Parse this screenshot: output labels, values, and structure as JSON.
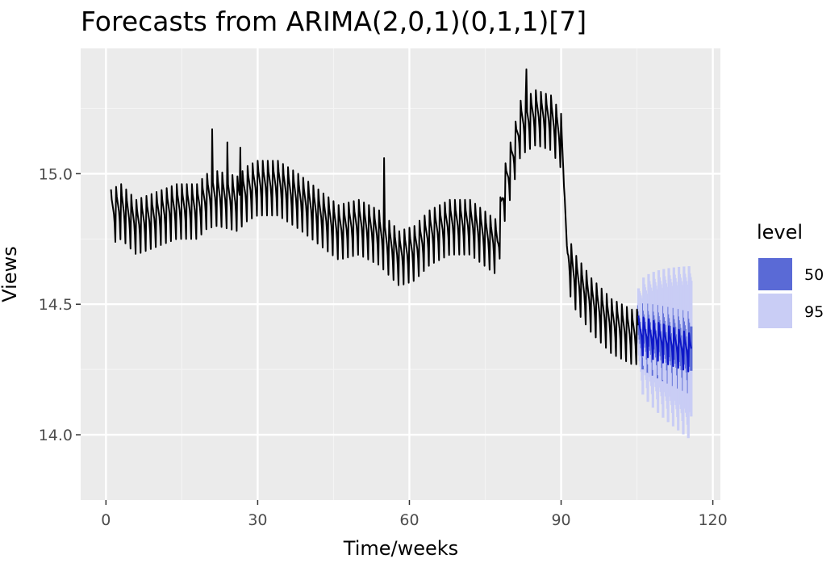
{
  "chart_data": {
    "type": "line",
    "title": "Forecasts from ARIMA(2,0,1)(0,1,1)[7]",
    "xlabel": "Time/weeks",
    "ylabel": "Views",
    "xlim": [
      -5,
      121.5
    ],
    "ylim": [
      13.75,
      15.48
    ],
    "x_ticks": [
      0,
      30,
      60,
      90,
      120
    ],
    "x_tick_labels": [
      "0",
      "30",
      "60",
      "90",
      "120"
    ],
    "y_ticks": [
      14.0,
      14.5,
      15.0
    ],
    "y_tick_labels": [
      "14.0",
      "14.5",
      "15.0"
    ],
    "grid": true,
    "legend": {
      "title": "level",
      "position": "right",
      "entries": [
        {
          "label": "50",
          "color": "#5a6ad6"
        },
        {
          "label": "95",
          "color": "#c9cdf5"
        }
      ]
    },
    "colors": {
      "panel_background": "#ebebeb",
      "grid_major": "#ffffff",
      "grid_minor": "#f4f4f4",
      "observed_line": "#000000",
      "forecast_line": "#0d17c8",
      "band_50": "#5a6ad6",
      "band_95": "#c9cdf5"
    },
    "series": [
      {
        "name": "observed",
        "weekly_pattern": [
          0.08,
          0.04,
          0.02,
          0.0,
          -0.02,
          -0.06,
          -0.13
        ],
        "x": [
          1.0,
          3,
          6,
          10,
          14,
          18,
          20,
          22,
          26,
          28,
          30,
          34,
          38,
          42,
          46,
          50,
          54,
          58,
          61,
          64,
          68,
          72,
          76,
          77.5,
          78.5,
          80,
          82,
          85,
          88,
          90,
          90.5,
          91.2,
          92.5,
          96,
          100,
          104,
          105.3
        ],
        "y": [
          14.86,
          14.88,
          14.82,
          14.85,
          14.88,
          14.88,
          14.92,
          14.93,
          14.91,
          14.95,
          14.97,
          14.97,
          14.92,
          14.86,
          14.8,
          14.82,
          14.78,
          14.7,
          14.72,
          14.78,
          14.82,
          14.82,
          14.76,
          14.74,
          14.92,
          15.04,
          15.2,
          15.24,
          15.22,
          15.15,
          15.0,
          14.7,
          14.62,
          14.52,
          14.44,
          14.4,
          14.4
        ],
        "spikes": [
          {
            "x": 21,
            "y": 15.17
          },
          {
            "x": 24,
            "y": 15.12
          },
          {
            "x": 26.5,
            "y": 15.1
          },
          {
            "x": 55,
            "y": 15.06
          },
          {
            "x": 83.2,
            "y": 15.4
          }
        ]
      },
      {
        "name": "forecast",
        "x_start": 105.3,
        "x_end": 115.7,
        "start": 14.4,
        "end": 14.33
      }
    ],
    "intervals": [
      {
        "level": "50",
        "width_start": 0.08,
        "width_end": 0.17
      },
      {
        "level": "95",
        "width_start": 0.21,
        "width_end": 0.52
      }
    ]
  }
}
